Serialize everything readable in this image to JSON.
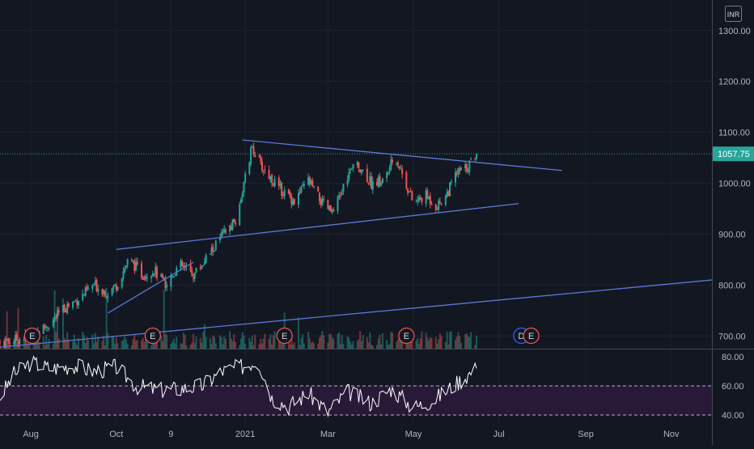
{
  "currency_badge": "INR",
  "chart_data": [
    {
      "type": "candlestick",
      "title": "",
      "price_axis": {
        "ticks": [
          "1300.00",
          "1200.00",
          "1100.00",
          "1000.00",
          "900.00",
          "800.00",
          "700.00"
        ],
        "tick_values": [
          1300,
          1200,
          1100,
          1000,
          900,
          800,
          700
        ],
        "ylim": [
          675,
          1360
        ]
      },
      "last_price": {
        "label": "1057.75",
        "value": 1057.75,
        "color": "#26a69a"
      },
      "time_axis": {
        "labels": [
          "Aug",
          "Oct",
          "9",
          "2021",
          "Mar",
          "May",
          "Jul",
          "Sep",
          "Nov"
        ],
        "range": [
          "2020-07-10",
          "2021-11-30"
        ],
        "label_dates": [
          "2020-08-01",
          "2020-10-01",
          "2020-11-09",
          "2021-01-01",
          "2021-03-01",
          "2021-05-01",
          "2021-07-01",
          "2021-09-01",
          "2021-11-01"
        ]
      },
      "colors": {
        "up": "#26a69a",
        "down": "#ef5350",
        "trendline": "#5b78d6",
        "background": "#131722",
        "grid": "#1e222d"
      },
      "price_path": [
        [
          "2020-07-10",
          688
        ],
        [
          "2020-07-20",
          692
        ],
        [
          "2020-08-01",
          700
        ],
        [
          "2020-08-15",
          725
        ],
        [
          "2020-08-25",
          755
        ],
        [
          "2020-09-05",
          775
        ],
        [
          "2020-09-15",
          800
        ],
        [
          "2020-09-25",
          785
        ],
        [
          "2020-10-01",
          800
        ],
        [
          "2020-10-10",
          850
        ],
        [
          "2020-10-20",
          820
        ],
        [
          "2020-10-28",
          830
        ],
        [
          "2020-11-05",
          800
        ],
        [
          "2020-11-15",
          840
        ],
        [
          "2020-11-25",
          820
        ],
        [
          "2020-12-05",
          855
        ],
        [
          "2020-12-15",
          895
        ],
        [
          "2020-12-25",
          925
        ],
        [
          "2021-01-01",
          1010
        ],
        [
          "2021-01-06",
          1072
        ],
        [
          "2021-01-12",
          1035
        ],
        [
          "2021-01-25",
          990
        ],
        [
          "2021-02-05",
          965
        ],
        [
          "2021-02-15",
          1005
        ],
        [
          "2021-02-25",
          960
        ],
        [
          "2021-03-05",
          940
        ],
        [
          "2021-03-15",
          1015
        ],
        [
          "2021-03-22",
          1040
        ],
        [
          "2021-04-01",
          1000
        ],
        [
          "2021-04-10",
          1005
        ],
        [
          "2021-04-18",
          1055
        ],
        [
          "2021-04-25",
          1005
        ],
        [
          "2021-05-01",
          960
        ],
        [
          "2021-05-10",
          975
        ],
        [
          "2021-05-18",
          955
        ],
        [
          "2021-05-25",
          980
        ],
        [
          "2021-06-01",
          1020
        ],
        [
          "2021-06-08",
          1030
        ],
        [
          "2021-06-15",
          1058
        ]
      ],
      "trendlines": [
        {
          "from": [
            "2020-12-30",
            1085
          ],
          "to": [
            "2021-08-15",
            1025
          ]
        },
        {
          "from": [
            "2020-10-01",
            870
          ],
          "to": [
            "2021-07-15",
            960
          ]
        },
        {
          "from": [
            "2020-09-25",
            745
          ],
          "to": [
            "2020-11-25",
            845
          ]
        },
        {
          "from": [
            "2020-07-10",
            678
          ],
          "to": [
            "2021-11-30",
            810
          ]
        }
      ],
      "events": [
        {
          "label": "E",
          "date": "2020-08-02",
          "color": "#ef5350"
        },
        {
          "label": "E",
          "date": "2020-10-27",
          "color": "#ef5350"
        },
        {
          "label": "E",
          "date": "2021-01-29",
          "color": "#ef5350"
        },
        {
          "label": "E",
          "date": "2021-04-26",
          "color": "#ef5350"
        },
        {
          "label": "D",
          "date": "2021-07-17",
          "color": "#2962ff"
        },
        {
          "label": "E",
          "date": "2021-07-24",
          "color": "#ef5350"
        }
      ]
    },
    {
      "type": "line",
      "title": "",
      "indicator": "oscillator",
      "y_ticks": [
        "80.00",
        "60.00",
        "40.00"
      ],
      "y_tick_values": [
        80,
        60,
        40
      ],
      "ylim": [
        35,
        85
      ],
      "band": [
        40,
        60
      ],
      "color": "#ffffff",
      "band_color": "#2a1a3a",
      "x": [
        "2020-07-10",
        "2020-07-20",
        "2020-08-01",
        "2020-08-15",
        "2020-09-01",
        "2020-09-15",
        "2020-10-01",
        "2020-10-15",
        "2020-11-01",
        "2020-11-15",
        "2020-12-01",
        "2020-12-15",
        "2021-01-01",
        "2021-01-10",
        "2021-01-20",
        "2021-02-01",
        "2021-02-15",
        "2021-03-01",
        "2021-03-15",
        "2021-04-01",
        "2021-04-15",
        "2021-05-01",
        "2021-05-15",
        "2021-06-01",
        "2021-06-15"
      ],
      "values": [
        52,
        68,
        76,
        72,
        74,
        70,
        73,
        60,
        57,
        58,
        60,
        70,
        74,
        78,
        52,
        46,
        55,
        42,
        56,
        48,
        58,
        45,
        50,
        62,
        72
      ]
    }
  ]
}
